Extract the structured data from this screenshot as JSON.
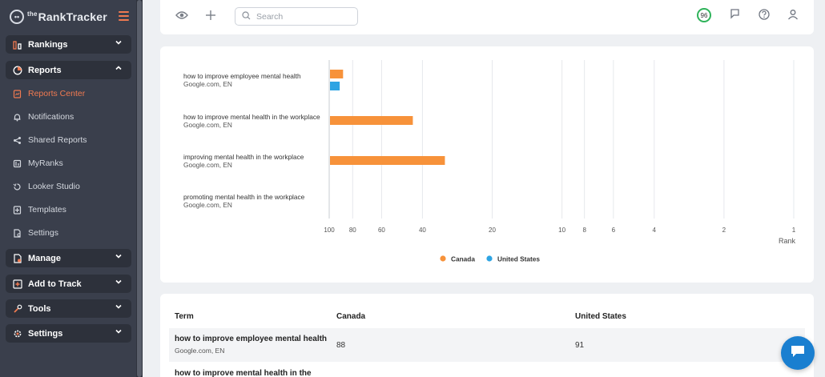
{
  "app": {
    "logo_mark": "••",
    "logo_prefix": "the",
    "logo_name": "RankTracker"
  },
  "sidebar": {
    "groups": [
      {
        "label": "Rankings",
        "icon": "rankings-bar-icon",
        "expanded": false
      },
      {
        "label": "Reports",
        "icon": "reports-pie-icon",
        "expanded": true
      },
      {
        "label": "Manage",
        "icon": "manage-doc-icon",
        "expanded": false
      },
      {
        "label": "Add to Track",
        "icon": "add-square-icon",
        "expanded": false
      },
      {
        "label": "Tools",
        "icon": "tools-icon",
        "expanded": false
      },
      {
        "label": "Settings",
        "icon": "settings-gear-icon",
        "expanded": false
      }
    ],
    "report_items": [
      {
        "label": "Reports Center",
        "icon": "reports-center-icon",
        "active": true
      },
      {
        "label": "Notifications",
        "icon": "bell-icon",
        "active": false
      },
      {
        "label": "Shared Reports",
        "icon": "share-icon",
        "active": false
      },
      {
        "label": "MyRanks",
        "icon": "myranks-icon",
        "active": false
      },
      {
        "label": "Looker Studio",
        "icon": "looker-icon",
        "active": false
      },
      {
        "label": "Templates",
        "icon": "templates-icon",
        "active": false
      },
      {
        "label": "Settings",
        "icon": "report-settings-icon",
        "active": false
      }
    ]
  },
  "topbar": {
    "search_placeholder": "Search",
    "score": "96",
    "icons": [
      "eye-icon",
      "plus-icon",
      "search-icon",
      "flag-icon",
      "help-icon",
      "user-icon"
    ]
  },
  "chart_data": {
    "type": "bar",
    "orientation": "horizontal",
    "x_scale": "log-rank",
    "xlabel": "Rank",
    "x_ticks": [
      100,
      80,
      60,
      40,
      20,
      10,
      8,
      6,
      4,
      2,
      1
    ],
    "categories": [
      {
        "term": "how to improve employee mental health",
        "engine": "Google.com, EN"
      },
      {
        "term": "how to improve mental health in the workplace",
        "engine": "Google.com, EN"
      },
      {
        "term": "improving mental health in the workplace",
        "engine": "Google.com, EN"
      },
      {
        "term": "promoting mental health in the workplace",
        "engine": "Google.com, EN"
      }
    ],
    "series": [
      {
        "name": "Canada",
        "color": "#f7923a",
        "values": [
          88,
          44,
          32,
          null
        ]
      },
      {
        "name": "United States",
        "color": "#2ea4e3",
        "values": [
          91,
          null,
          null,
          null
        ]
      }
    ],
    "legend_position": "bottom-center",
    "grid": true
  },
  "table": {
    "headers": [
      "Term",
      "Canada",
      "United States"
    ],
    "rows": [
      {
        "term": "how to improve employee mental health",
        "engine": "Google.com, EN",
        "canada": "88",
        "united_states": "91"
      },
      {
        "term": "how to improve mental health in the",
        "engine": "",
        "canada": "",
        "united_states": ""
      }
    ]
  },
  "chat": {
    "icon": "chat-bubble-icon"
  }
}
